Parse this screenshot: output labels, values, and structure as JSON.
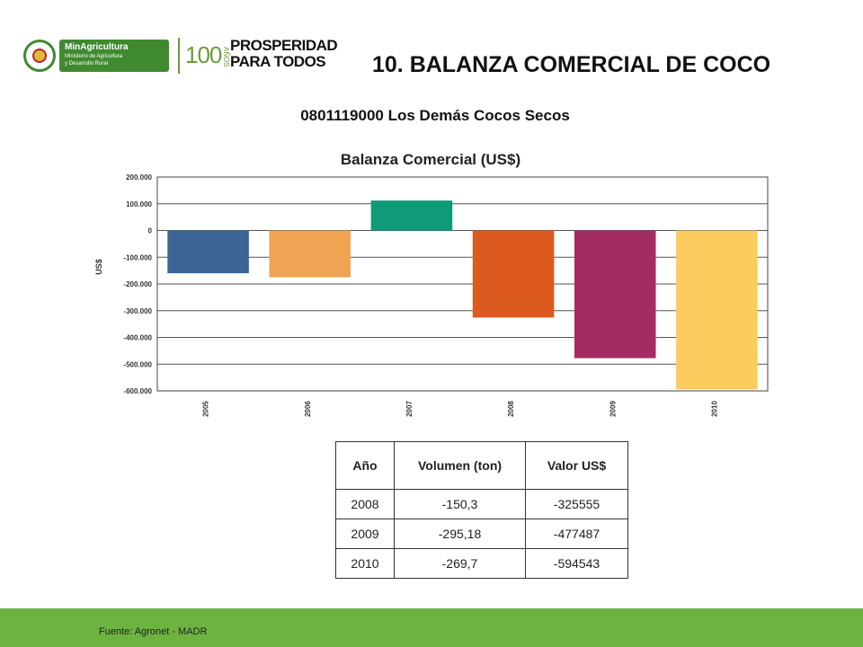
{
  "header": {
    "title": "10. BALANZA COMERCIAL DE COCO",
    "ministry_logo_name": "MinAgricultura",
    "ministry_logo_line1": "Ministerio de Agricultura",
    "ministry_logo_line2": "y Desarrollo Rural",
    "hundred_text": "100",
    "anos_text": "AÑOS",
    "prosperidad_line1": "PROSPERIDAD",
    "prosperidad_line2": "PARA TODOS"
  },
  "subtitle": "0801119000 Los Demás Cocos Secos",
  "chart_data": {
    "type": "bar",
    "title": "Balanza Comercial (US$)",
    "xlabel": "",
    "ylabel": "US$",
    "categories": [
      "2005",
      "2006",
      "2007",
      "2008",
      "2009",
      "2010"
    ],
    "values": [
      -160000,
      -175000,
      112000,
      -325555,
      -477487,
      -594543
    ],
    "colors": [
      "#3c6596",
      "#f0a353",
      "#0f9a78",
      "#dc5a20",
      "#a32c62",
      "#fccb5e"
    ],
    "ylim": [
      -600000,
      200000
    ],
    "yticks": [
      200000,
      100000,
      0,
      -100000,
      -200000,
      -300000,
      -400000,
      -500000,
      -600000
    ],
    "ytick_labels": [
      "200.000",
      "100.000",
      "0",
      "-100.000",
      "-200.000",
      "-300.000",
      "-400.000",
      "-500.000",
      "-600.000"
    ],
    "grid": true,
    "legend": "none"
  },
  "table": {
    "headers": [
      "Año",
      "Volumen (ton)",
      "Valor US$"
    ],
    "rows": [
      [
        "2008",
        "-150,3",
        "-325555"
      ],
      [
        "2009",
        "-295,18",
        "-477487"
      ],
      [
        "2010",
        "-269,7",
        "-594543"
      ]
    ]
  },
  "footer": {
    "source": "Fuente: Agronet - MADR"
  }
}
